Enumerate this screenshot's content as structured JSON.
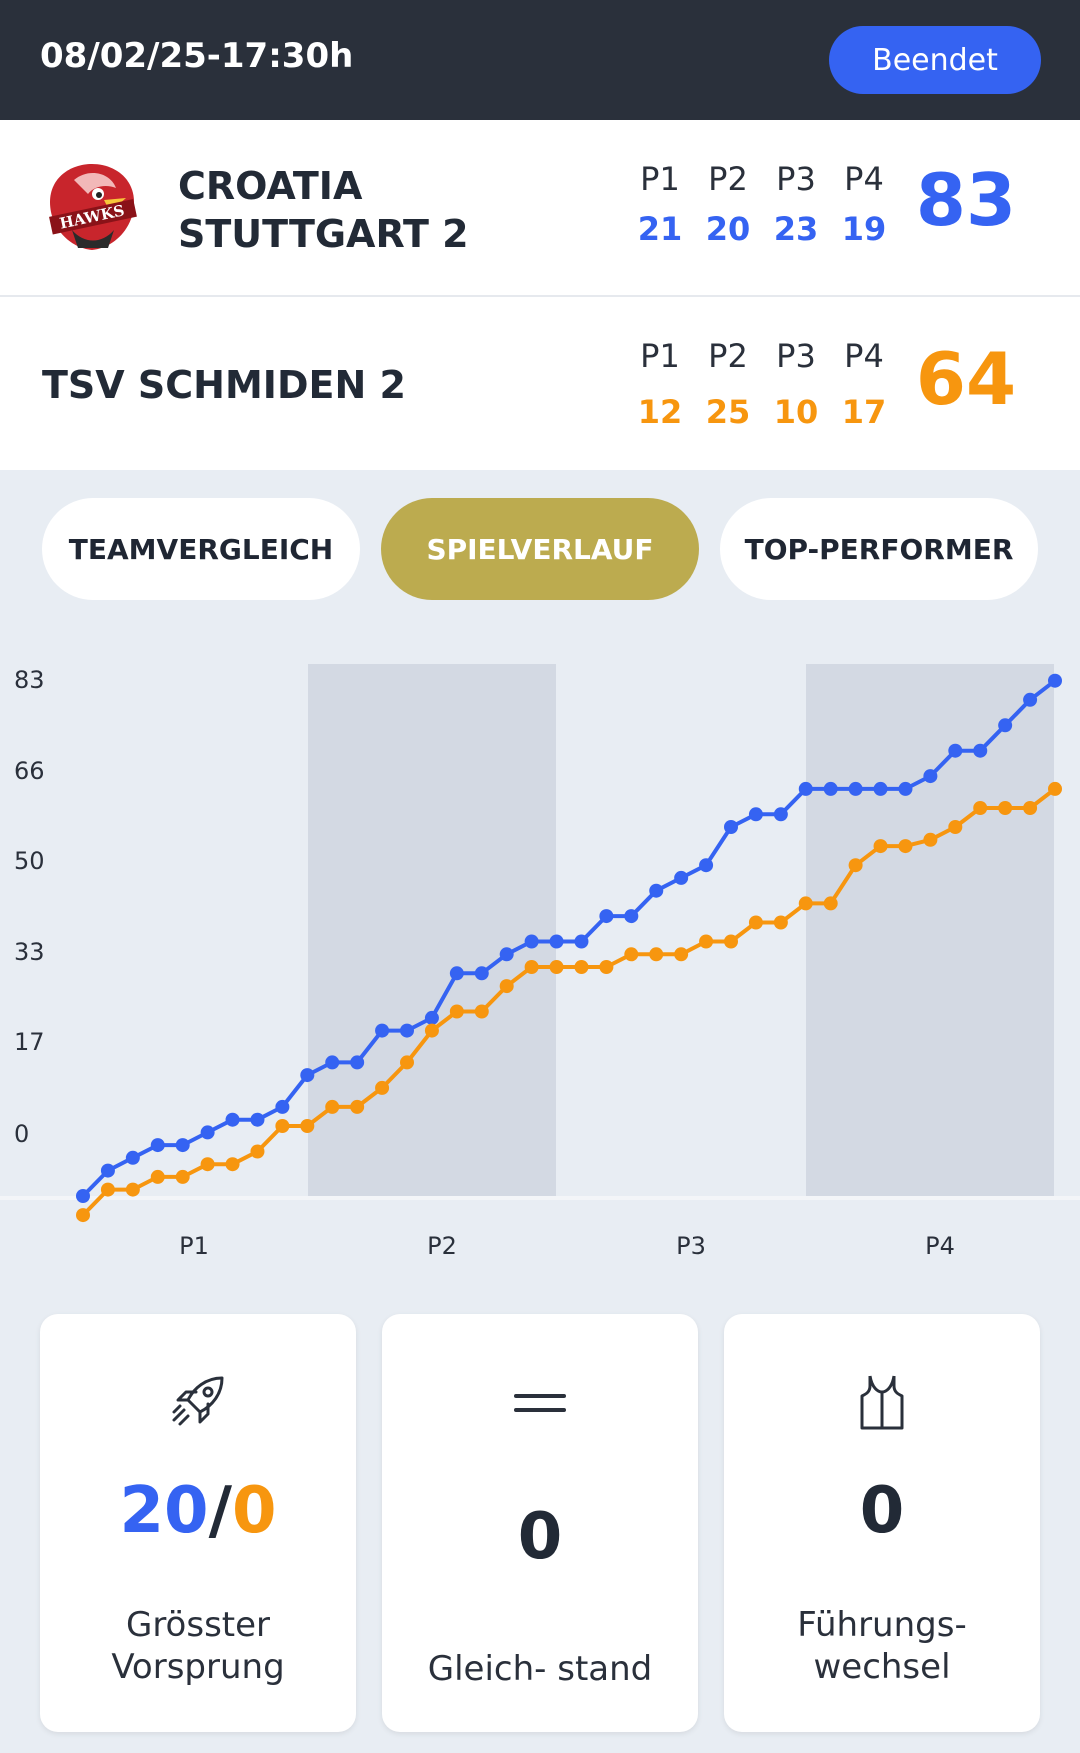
{
  "header": {
    "datetime": "08/02/25-17:30h",
    "status_label": "Beendet"
  },
  "team_home": {
    "name_line1": "CROATIA",
    "name_line2": "STUTTGART 2",
    "logo_text": "HAWKS",
    "periods": [
      {
        "label": "P1",
        "score": "21"
      },
      {
        "label": "P2",
        "score": "20"
      },
      {
        "label": "P3",
        "score": "23"
      },
      {
        "label": "P4",
        "score": "19"
      }
    ],
    "total": "83"
  },
  "team_away": {
    "name": "TSV SCHMIDEN 2",
    "periods": [
      {
        "label": "P1",
        "score": "12"
      },
      {
        "label": "P2",
        "score": "25"
      },
      {
        "label": "P3",
        "score": "10"
      },
      {
        "label": "P4",
        "score": "17"
      }
    ],
    "total": "64"
  },
  "tabs": [
    {
      "label": "TEAMVERGLEICH",
      "active": false
    },
    {
      "label": "SPIELVERLAUF",
      "active": true
    },
    {
      "label": "TOP-PERFORMER",
      "active": false
    }
  ],
  "chart_data": {
    "type": "line",
    "y_ticks": [
      "83",
      "66",
      "50",
      "33",
      "17",
      "0"
    ],
    "ylim": [
      0,
      83
    ],
    "period_labels": [
      "P1",
      "P2",
      "P3",
      "P4"
    ],
    "shaded_periods": [
      "P2",
      "P4"
    ],
    "series": [
      {
        "color": "#3563f2",
        "values": [
          0,
          4,
          6,
          8,
          8,
          10,
          12,
          12,
          14,
          19,
          21,
          21,
          26,
          26,
          28,
          35,
          35,
          38,
          40,
          40,
          40,
          44,
          44,
          48,
          50,
          52,
          58,
          60,
          60,
          64,
          64,
          64,
          64,
          64,
          66,
          70,
          70,
          74,
          78,
          81
        ]
      },
      {
        "color": "#f7960f",
        "values": [
          -3,
          1,
          1,
          3,
          3,
          5,
          5,
          7,
          11,
          11,
          14,
          14,
          17,
          21,
          26,
          29,
          29,
          33,
          36,
          36,
          36,
          36,
          38,
          38,
          38,
          40,
          40,
          43,
          43,
          46,
          46,
          52,
          55,
          55,
          56,
          58,
          61,
          61,
          61,
          64
        ]
      }
    ]
  },
  "cards": [
    {
      "icon": "rocket-icon",
      "value_home": "20",
      "value_sep": "/",
      "value_away": "0",
      "label_line1": "Grösster",
      "label_line2": "Vorsprung"
    },
    {
      "icon": "equals-icon",
      "value": "0",
      "label_line1": "Gleich- stand"
    },
    {
      "icon": "jersey-icon",
      "value": "0",
      "label_line1": "Führungs-",
      "label_line2": "wechsel"
    }
  ],
  "colors": {
    "home": "#3563f2",
    "away": "#f7960f",
    "active_tab": "#bcab4f",
    "topbar": "#2a303b"
  }
}
